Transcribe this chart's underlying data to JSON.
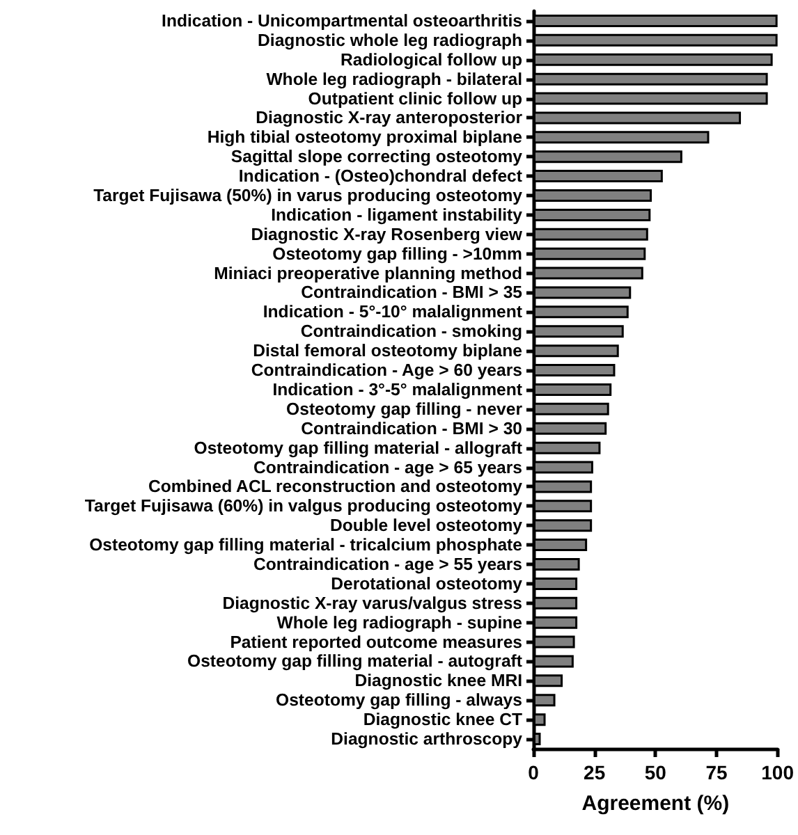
{
  "chart_data": {
    "type": "bar",
    "orientation": "horizontal",
    "xlabel": "Agreement (%)",
    "categories": [
      "Indication - Unicompartmental osteoarthritis",
      "Diagnostic whole leg radiograph",
      "Radiological follow up",
      "Whole leg radiograph - bilateral",
      "Outpatient clinic follow up",
      "Diagnostic X-ray anteroposterior",
      "High tibial osteotomy proximal biplane",
      "Sagittal slope correcting osteotomy",
      "Indication - (Osteo)chondral defect",
      "Target Fujisawa (50%) in varus producing osteotomy",
      "Indication - ligament instability",
      "Diagnostic X-ray Rosenberg view",
      "Osteotomy gap filling - >10mm",
      "Miniaci preoperative planning method",
      "Contraindication - BMI > 35",
      "Indication - 5°-10° malalignment",
      "Contraindication - smoking",
      "Distal femoral osteotomy biplane",
      "Contraindication - Age > 60 years",
      "Indication - 3°-5° malalignment",
      "Osteotomy gap filling - never",
      "Contraindication - BMI > 30",
      "Osteotomy gap filling material - allograft",
      "Contraindication - age > 65 years",
      "Combined ACL reconstruction and osteotomy",
      "Target Fujisawa (60%) in valgus producing osteotomy",
      "Double level osteotomy",
      "Osteotomy gap filling material - tricalcium phosphate",
      "Contraindication - age > 55 years",
      "Derotational osteotomy",
      "Diagnostic X-ray varus/valgus stress",
      "Whole leg radiograph - supine",
      "Patient reported outcome measures",
      "Osteotomy gap filling material - autograft",
      "Diagnostic knee MRI",
      "Osteotomy gap filling - always",
      "Diagnostic knee CT",
      "Diagnostic arthroscopy"
    ],
    "values": [
      100,
      100,
      98,
      96,
      96,
      85,
      72,
      61,
      53,
      48.5,
      48,
      47,
      46,
      45,
      40,
      39,
      37,
      35,
      33.5,
      32,
      31,
      30,
      27.5,
      24.5,
      24,
      24,
      24,
      22,
      19,
      18,
      18,
      18,
      17,
      16.5,
      12,
      9,
      5,
      3
    ],
    "color": "#808080",
    "xlim": [
      0,
      100
    ],
    "xticks": [
      0,
      25,
      50,
      75,
      100
    ]
  }
}
